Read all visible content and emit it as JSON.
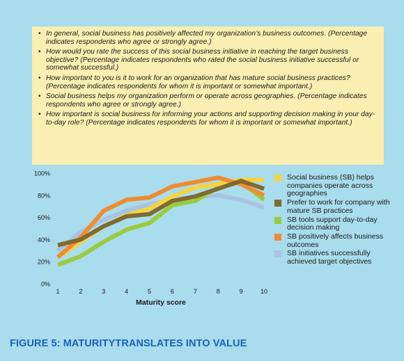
{
  "notes": [
    "In general, social business has positively affected my organization’s business outcomes. (Percentage indicates respondents who agree or strongly agree.)",
    "How would you rate the success of this social business initiative in reaching the target business objective? (Percentage indicates respondents who rated the social business initiative successful or somewhat successful.)",
    "How important to you is it to work for an organization that has mature social business practices? (Percentage indicates respondents for whom it is important or somewhat important.)",
    "Social business helps my organization perform or operate across geographies. (Percentage indicates respondents who agree or strongly agree.)",
    "How important is social business for informing your actions and supporting decision making in your day-to-day role? (Percentage indicates respondents for whom it is important or somewhat important.)"
  ],
  "caption": "FIGURE 5: MATURITYTRANSLATES INTO VALUE",
  "chart_data": {
    "type": "line",
    "xlabel": "Maturity score",
    "ylabel": "",
    "x": [
      1,
      2,
      3,
      4,
      5,
      6,
      7,
      8,
      9,
      10
    ],
    "xticks": [
      "1",
      "2",
      "3",
      "4",
      "5",
      "6",
      "7",
      "8",
      "9",
      "10"
    ],
    "ylim": [
      0,
      100
    ],
    "yticks": [
      "0%",
      "20%",
      "40%",
      "60%",
      "80%",
      "100%"
    ],
    "grid": false,
    "legend": "right",
    "series": [
      {
        "name": "Social business (SB) helps companies operate across geographies",
        "color": "#f7d341",
        "values": [
          24,
          38,
          52,
          62,
          68,
          79,
          87,
          90,
          94,
          94
        ]
      },
      {
        "name": "Prefer to work for company with mature SB practices",
        "color": "#7f6a30",
        "values": [
          35,
          40,
          52,
          61,
          63,
          75,
          79,
          86,
          93,
          86
        ]
      },
      {
        "name": "SB tools support day-to-day decision making",
        "color": "#9acb3c",
        "values": [
          17,
          25,
          38,
          49,
          55,
          71,
          75,
          87,
          92,
          76
        ]
      },
      {
        "name": "SB positively affects business outcomes",
        "color": "#f08c2d",
        "values": [
          24,
          42,
          66,
          76,
          78,
          88,
          92,
          96,
          90,
          80
        ]
      },
      {
        "name": "SB initiatives successfully achieved target objectives",
        "color": "#a8c3e3",
        "values": [
          30,
          47,
          58,
          66,
          72,
          75,
          78,
          80,
          76,
          69
        ]
      }
    ]
  }
}
